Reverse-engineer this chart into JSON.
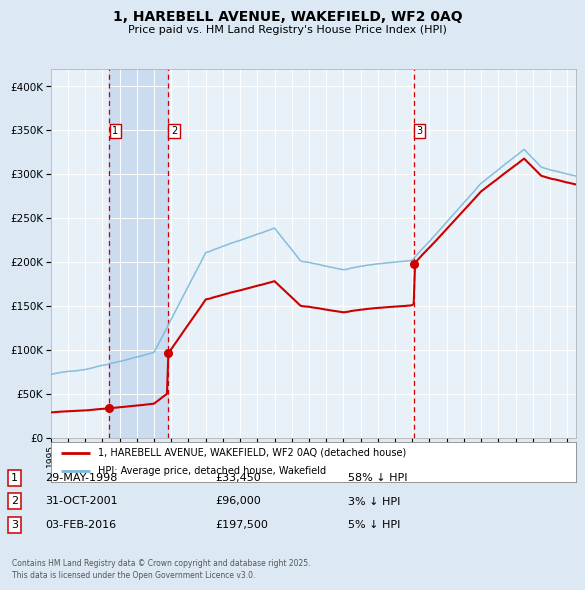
{
  "title": "1, HAREBELL AVENUE, WAKEFIELD, WF2 0AQ",
  "subtitle": "Price paid vs. HM Land Registry's House Price Index (HPI)",
  "legend_line1": "1, HAREBELL AVENUE, WAKEFIELD, WF2 0AQ (detached house)",
  "legend_line2": "HPI: Average price, detached house, Wakefield",
  "purchases": [
    {
      "num": 1,
      "date_x": 1998.41,
      "price": 33450,
      "label": "29-MAY-1998",
      "price_str": "£33,450",
      "note": "58% ↓ HPI"
    },
    {
      "num": 2,
      "date_x": 2001.83,
      "price": 96000,
      "label": "31-OCT-2001",
      "price_str": "£96,000",
      "note": "3% ↓ HPI"
    },
    {
      "num": 3,
      "date_x": 2016.09,
      "price": 197500,
      "label": "03-FEB-2016",
      "price_str": "£197,500",
      "note": "5% ↓ HPI"
    }
  ],
  "bg_color": "#dce9f5",
  "plot_bg": "#e8f0f8",
  "grid_color": "#ffffff",
  "hpi_color": "#7ab8d9",
  "price_color": "#cc0000",
  "vline_color": "#cc0000",
  "shade_color": "#c6d9f0",
  "ylim": [
    0,
    420000
  ],
  "xlim_start": 1995.0,
  "xlim_end": 2025.5,
  "ytick_values": [
    0,
    50000,
    100000,
    150000,
    200000,
    250000,
    300000,
    350000,
    400000
  ],
  "footer": "Contains HM Land Registry data © Crown copyright and database right 2025.\nThis data is licensed under the Open Government Licence v3.0."
}
